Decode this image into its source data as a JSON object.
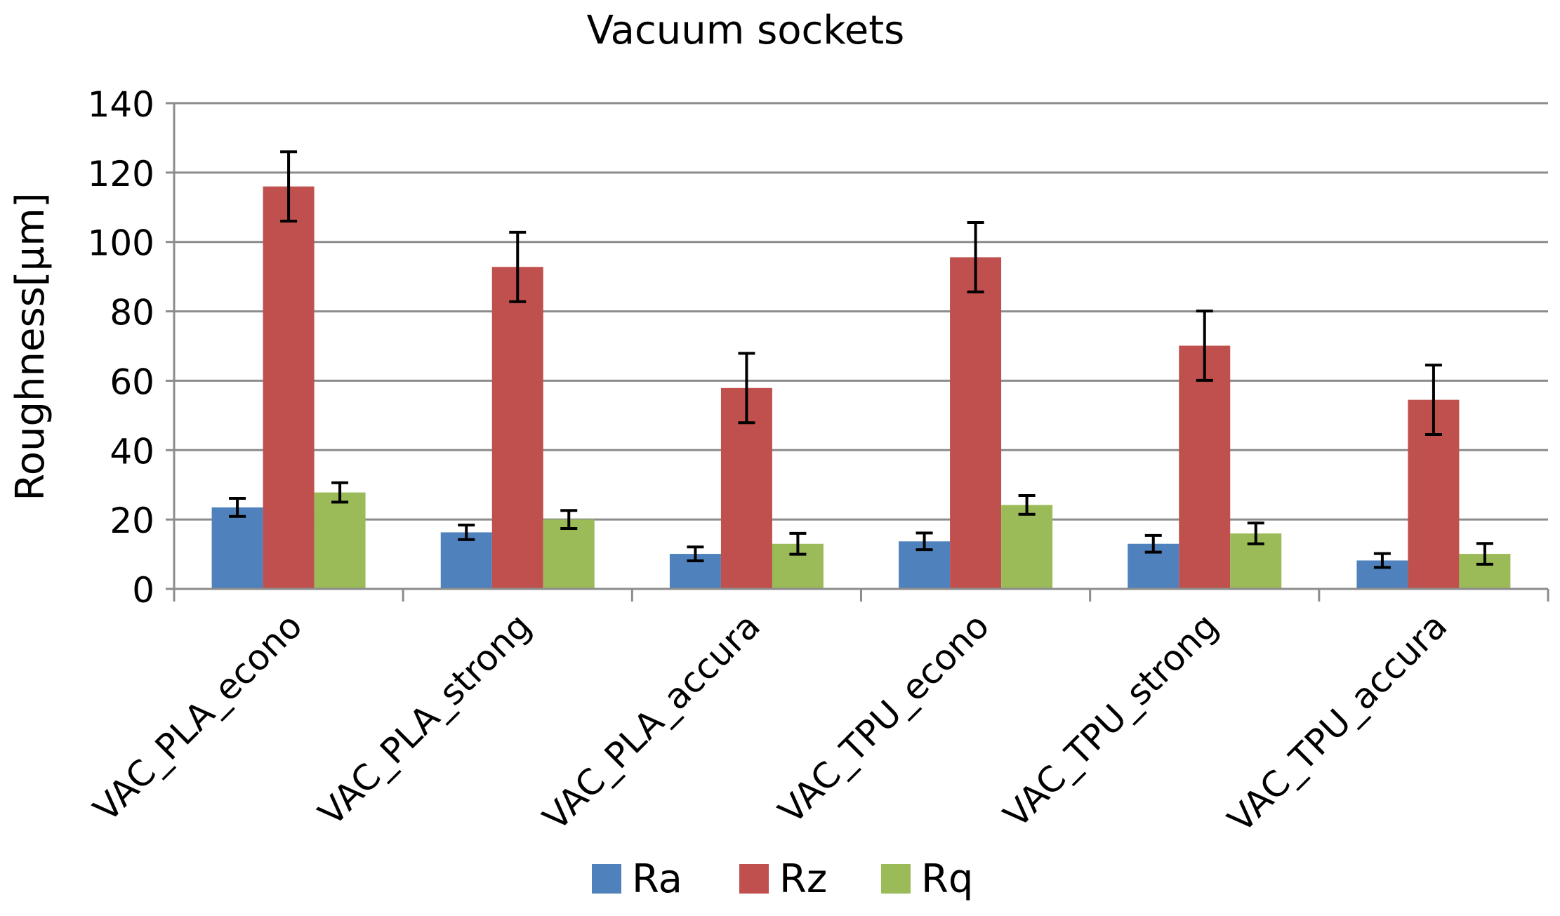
{
  "chart_data": {
    "type": "bar",
    "title": "Vacuum sockets",
    "xlabel": "",
    "ylabel": "Roughness[µm]",
    "ylim": [
      0,
      140
    ],
    "yticks": [
      0,
      20,
      40,
      60,
      80,
      100,
      120,
      140
    ],
    "grid": true,
    "legend": "bottom",
    "categories": [
      "VAC_PLA_econo",
      "VAC_PLA_strong",
      "VAC_PLA_accura",
      "VAC_TPU_econo",
      "VAC_TPU_strong",
      "VAC_TPU_accura"
    ],
    "series": [
      {
        "name": "Ra",
        "color": "#4f81bd",
        "values": [
          23.5,
          16.3,
          10.1,
          13.7,
          13.0,
          8.2
        ],
        "errors": [
          2.6,
          2.1,
          2.0,
          2.4,
          2.4,
          2.0
        ]
      },
      {
        "name": "Rz",
        "color": "#c0504d",
        "values": [
          116.0,
          92.8,
          57.9,
          95.6,
          70.1,
          54.5
        ],
        "errors": [
          10.0,
          10.0,
          10.0,
          10.0,
          10.0,
          10.0
        ]
      },
      {
        "name": "Rq",
        "color": "#9bbb59",
        "values": [
          27.8,
          20.0,
          13.0,
          24.2,
          16.0,
          10.1
        ],
        "errors": [
          2.8,
          2.6,
          3.0,
          2.7,
          3.0,
          3.0
        ]
      }
    ]
  }
}
